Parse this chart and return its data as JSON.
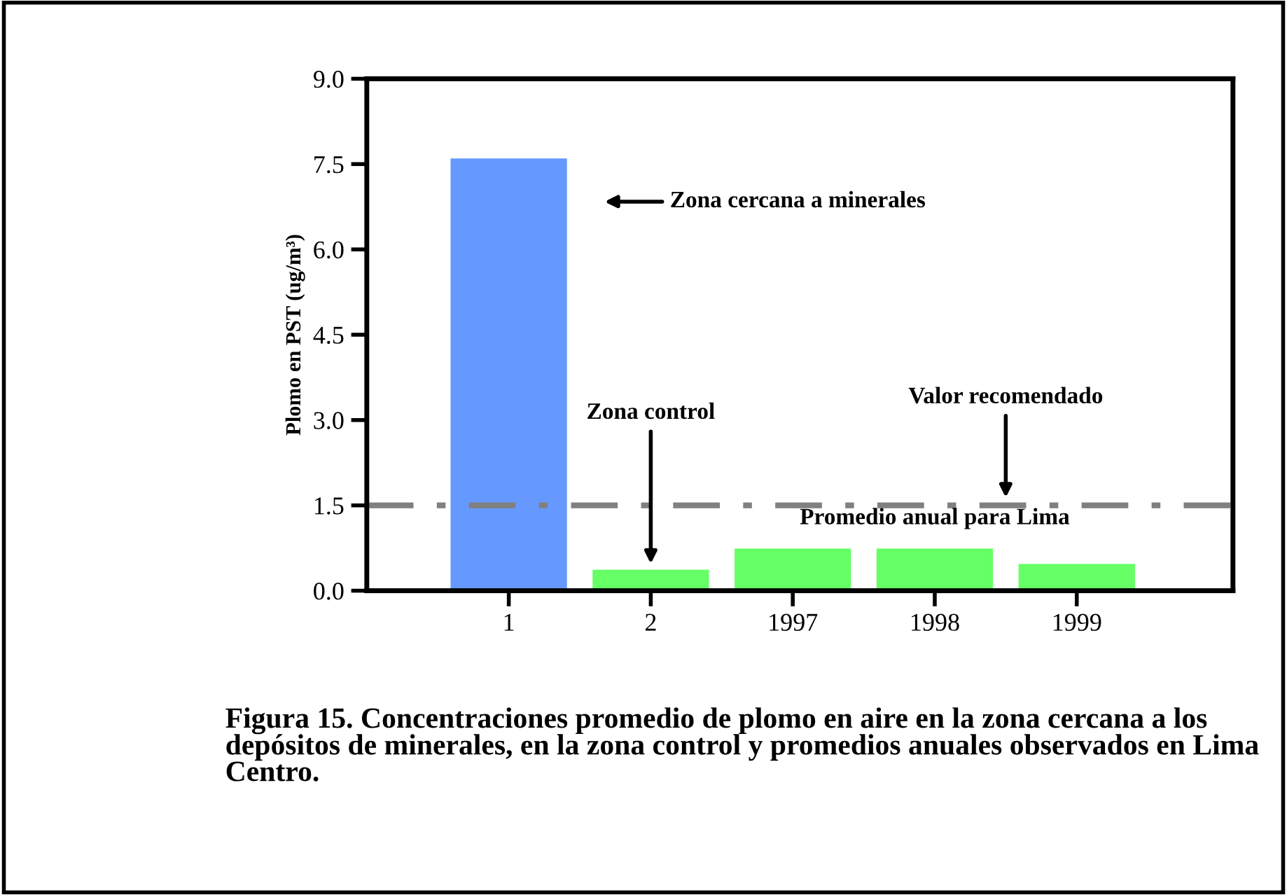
{
  "chart_data": {
    "type": "bar",
    "ylabel": "Plomo en PST (ug/m³)",
    "categories": [
      "1",
      "2",
      "1997",
      "1998",
      "1999"
    ],
    "values": [
      7.6,
      0.37,
      0.74,
      0.74,
      0.47
    ],
    "colors": [
      "#6699ff",
      "#66ff66",
      "#66ff66",
      "#66ff66",
      "#66ff66"
    ],
    "ylim": [
      0,
      9
    ],
    "yticks": [
      {
        "value": 0,
        "label": "0.0"
      },
      {
        "value": 1.5,
        "label": "1.5"
      },
      {
        "value": 3,
        "label": "3.0"
      },
      {
        "value": 4.5,
        "label": "4.5"
      },
      {
        "value": 6,
        "label": "6.0"
      },
      {
        "value": 7.5,
        "label": "7.5"
      },
      {
        "value": 9,
        "label": "9.0"
      }
    ],
    "grid": false,
    "legend": false,
    "ref_lines": [
      {
        "axis": "y",
        "value": 1.5,
        "label": "Valor recomendado",
        "color": "#808080",
        "line_style": "dashed"
      }
    ],
    "annotations": [
      "Zona cercana a minerales",
      {
        "text": "Zona control",
        "x": "2",
        "y": 0.37
      },
      {
        "text": "Promedio anual para Lima",
        "x": "1998",
        "y": 0.74
      },
      "Figura 15. Concentraciones promedio de plomo en aire en la zona cercana a los depósitos de minerales, en la zona control y promedios anuales observados en Lima Centro."
    ]
  }
}
